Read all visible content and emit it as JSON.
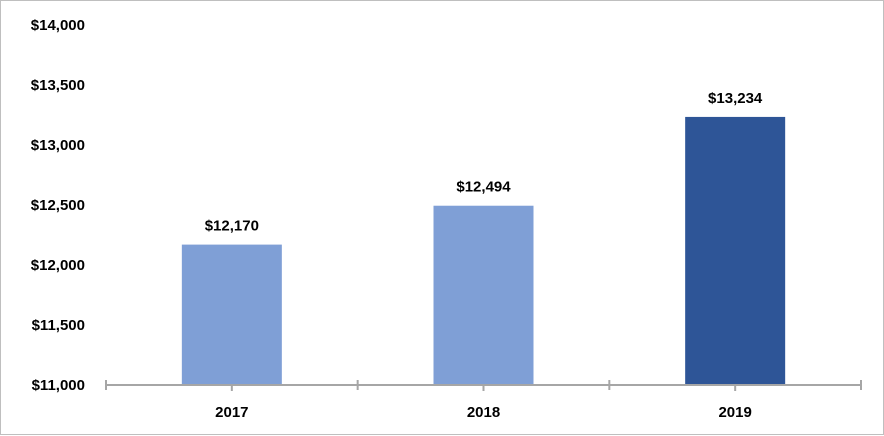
{
  "chart_data": {
    "type": "bar",
    "title": "",
    "xlabel": "",
    "ylabel": "",
    "categories": [
      "2017",
      "2018",
      "2019"
    ],
    "values": [
      12170,
      12494,
      13234
    ],
    "data_labels": [
      "$12,170",
      "$12,494",
      "$13,234"
    ],
    "bar_colors": [
      "#7f9fd6",
      "#7f9fd6",
      "#2e5597"
    ],
    "ylim": [
      11000,
      14000
    ],
    "y_ticks": [
      11000,
      11500,
      12000,
      12500,
      13000,
      13500,
      14000
    ],
    "y_tick_labels": [
      "$11,000",
      "$11,500",
      "$12,000",
      "$12,500",
      "$13,000",
      "$13,500",
      "$14,000"
    ],
    "grid": false,
    "legend": "none",
    "axis_color": "#a6a6a6"
  }
}
